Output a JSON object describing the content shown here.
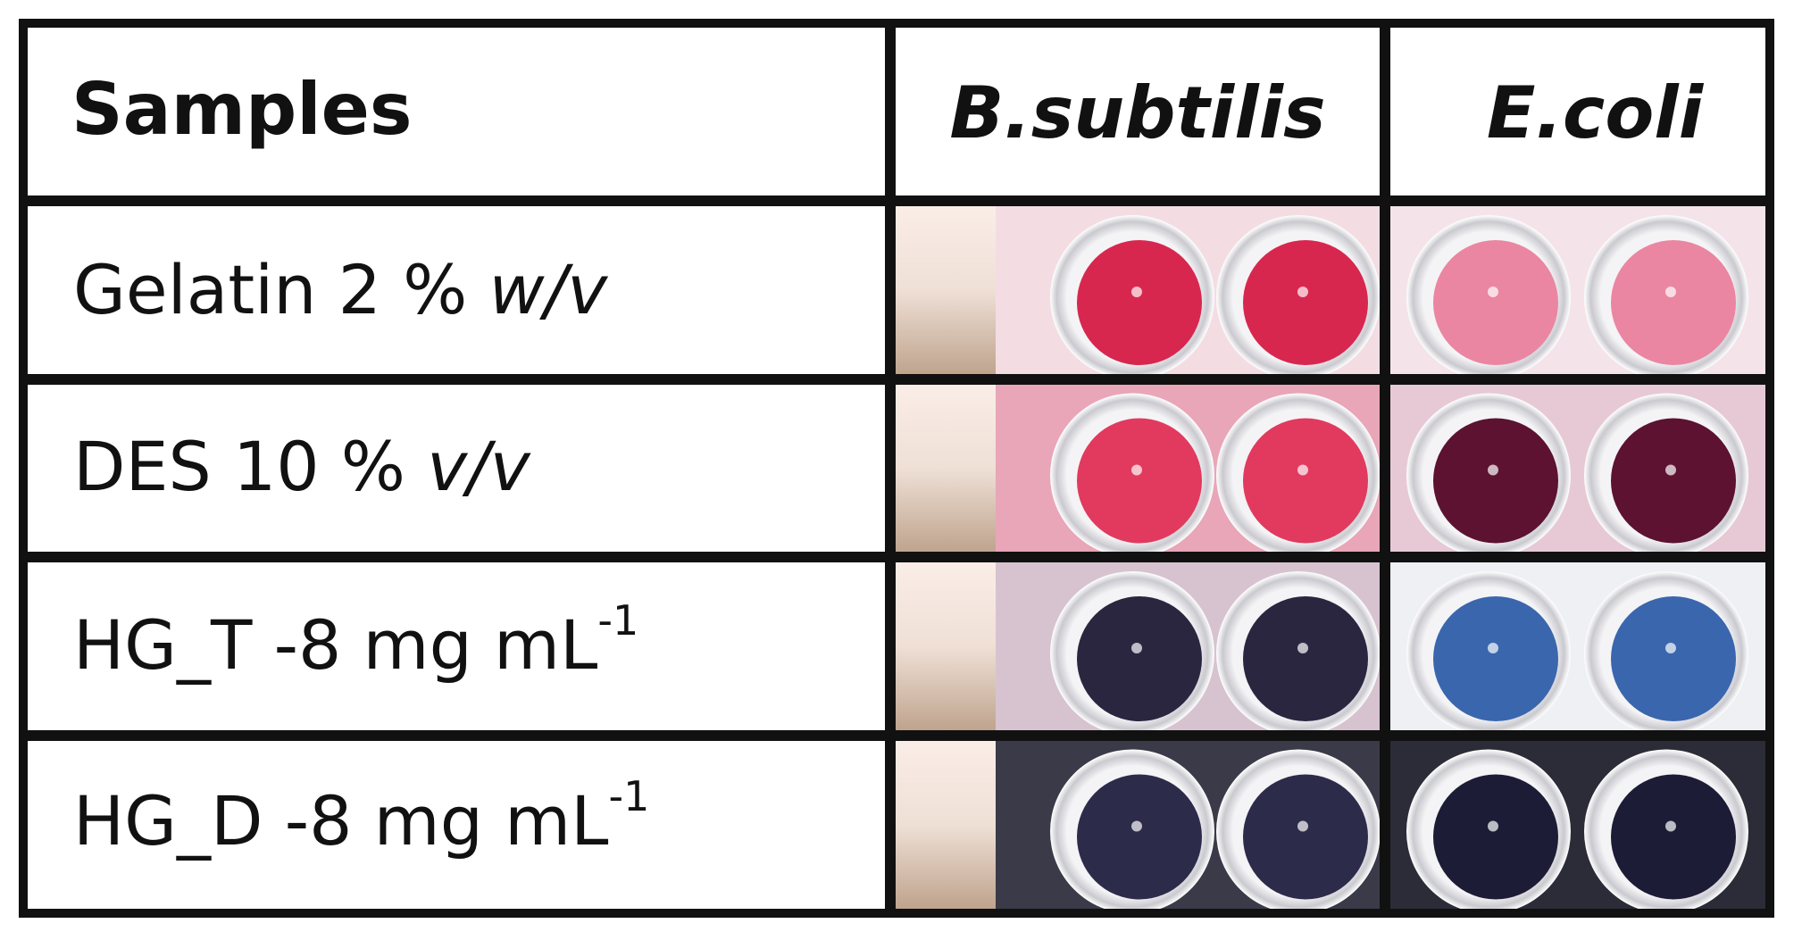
{
  "table": {
    "header": [
      "Samples",
      "B.subtilis",
      "E.coli"
    ],
    "rows": [
      {
        "label": "Gelatin 2 %",
        "italic": "w/v"
      },
      {
        "label": "DES 10 %",
        "italic": "v/v"
      },
      {
        "label": "HG_T -8 mg mL",
        "sup": "-1"
      },
      {
        "label": "HG_D -8 mg mL",
        "sup": "-1"
      }
    ]
  }
}
